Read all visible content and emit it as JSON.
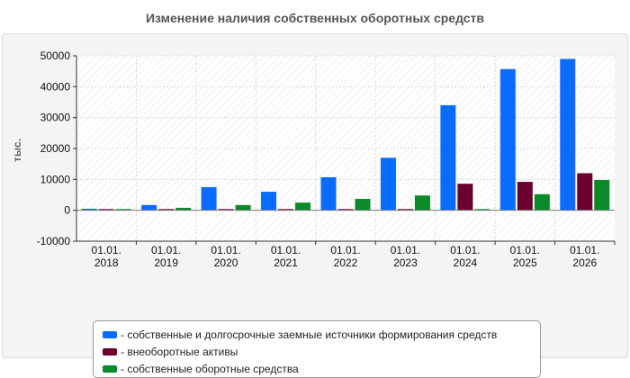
{
  "chart_data": {
    "type": "bar",
    "title": "Изменение наличия собственных оборотных средств",
    "ylabel": "тыс.",
    "xlabel": "",
    "ylim": [
      -10000,
      50000
    ],
    "yticks": [
      -10000,
      0,
      10000,
      20000,
      30000,
      40000,
      50000
    ],
    "ytick_labels": [
      "-10000",
      "0",
      "10000",
      "20000",
      "30000",
      "40000",
      "50000"
    ],
    "grid": true,
    "legend_position": "bottom",
    "categories": [
      [
        "01.01.",
        "2018"
      ],
      [
        "01.01.",
        "2019"
      ],
      [
        "01.01.",
        "2020"
      ],
      [
        "01.01.",
        "2021"
      ],
      [
        "01.01.",
        "2022"
      ],
      [
        "01.01.",
        "2023"
      ],
      [
        "01.01.",
        "2024"
      ],
      [
        "01.01.",
        "2025"
      ],
      [
        "01.01.",
        "2026"
      ]
    ],
    "series": [
      {
        "name": "собственные и долгосрочные заемные источники формирования средств",
        "legend_label": "- собственные и долгосрочные заемные источники формирования средств",
        "color": "#0a6cff",
        "values": [
          500,
          1700,
          7500,
          6000,
          10700,
          17000,
          34000,
          45700,
          49000
        ]
      },
      {
        "name": "внеоборотные активы",
        "legend_label": "- внеоборотные активы",
        "color": "#6b0030",
        "values": [
          400,
          400,
          400,
          400,
          400,
          400,
          8600,
          9200,
          12000
        ]
      },
      {
        "name": "собственные оборотные средства",
        "legend_label": "- собственные оборотные средства",
        "color": "#0b8a2a",
        "values": [
          400,
          800,
          1700,
          2500,
          3700,
          4800,
          400,
          5200,
          9800
        ]
      }
    ]
  }
}
